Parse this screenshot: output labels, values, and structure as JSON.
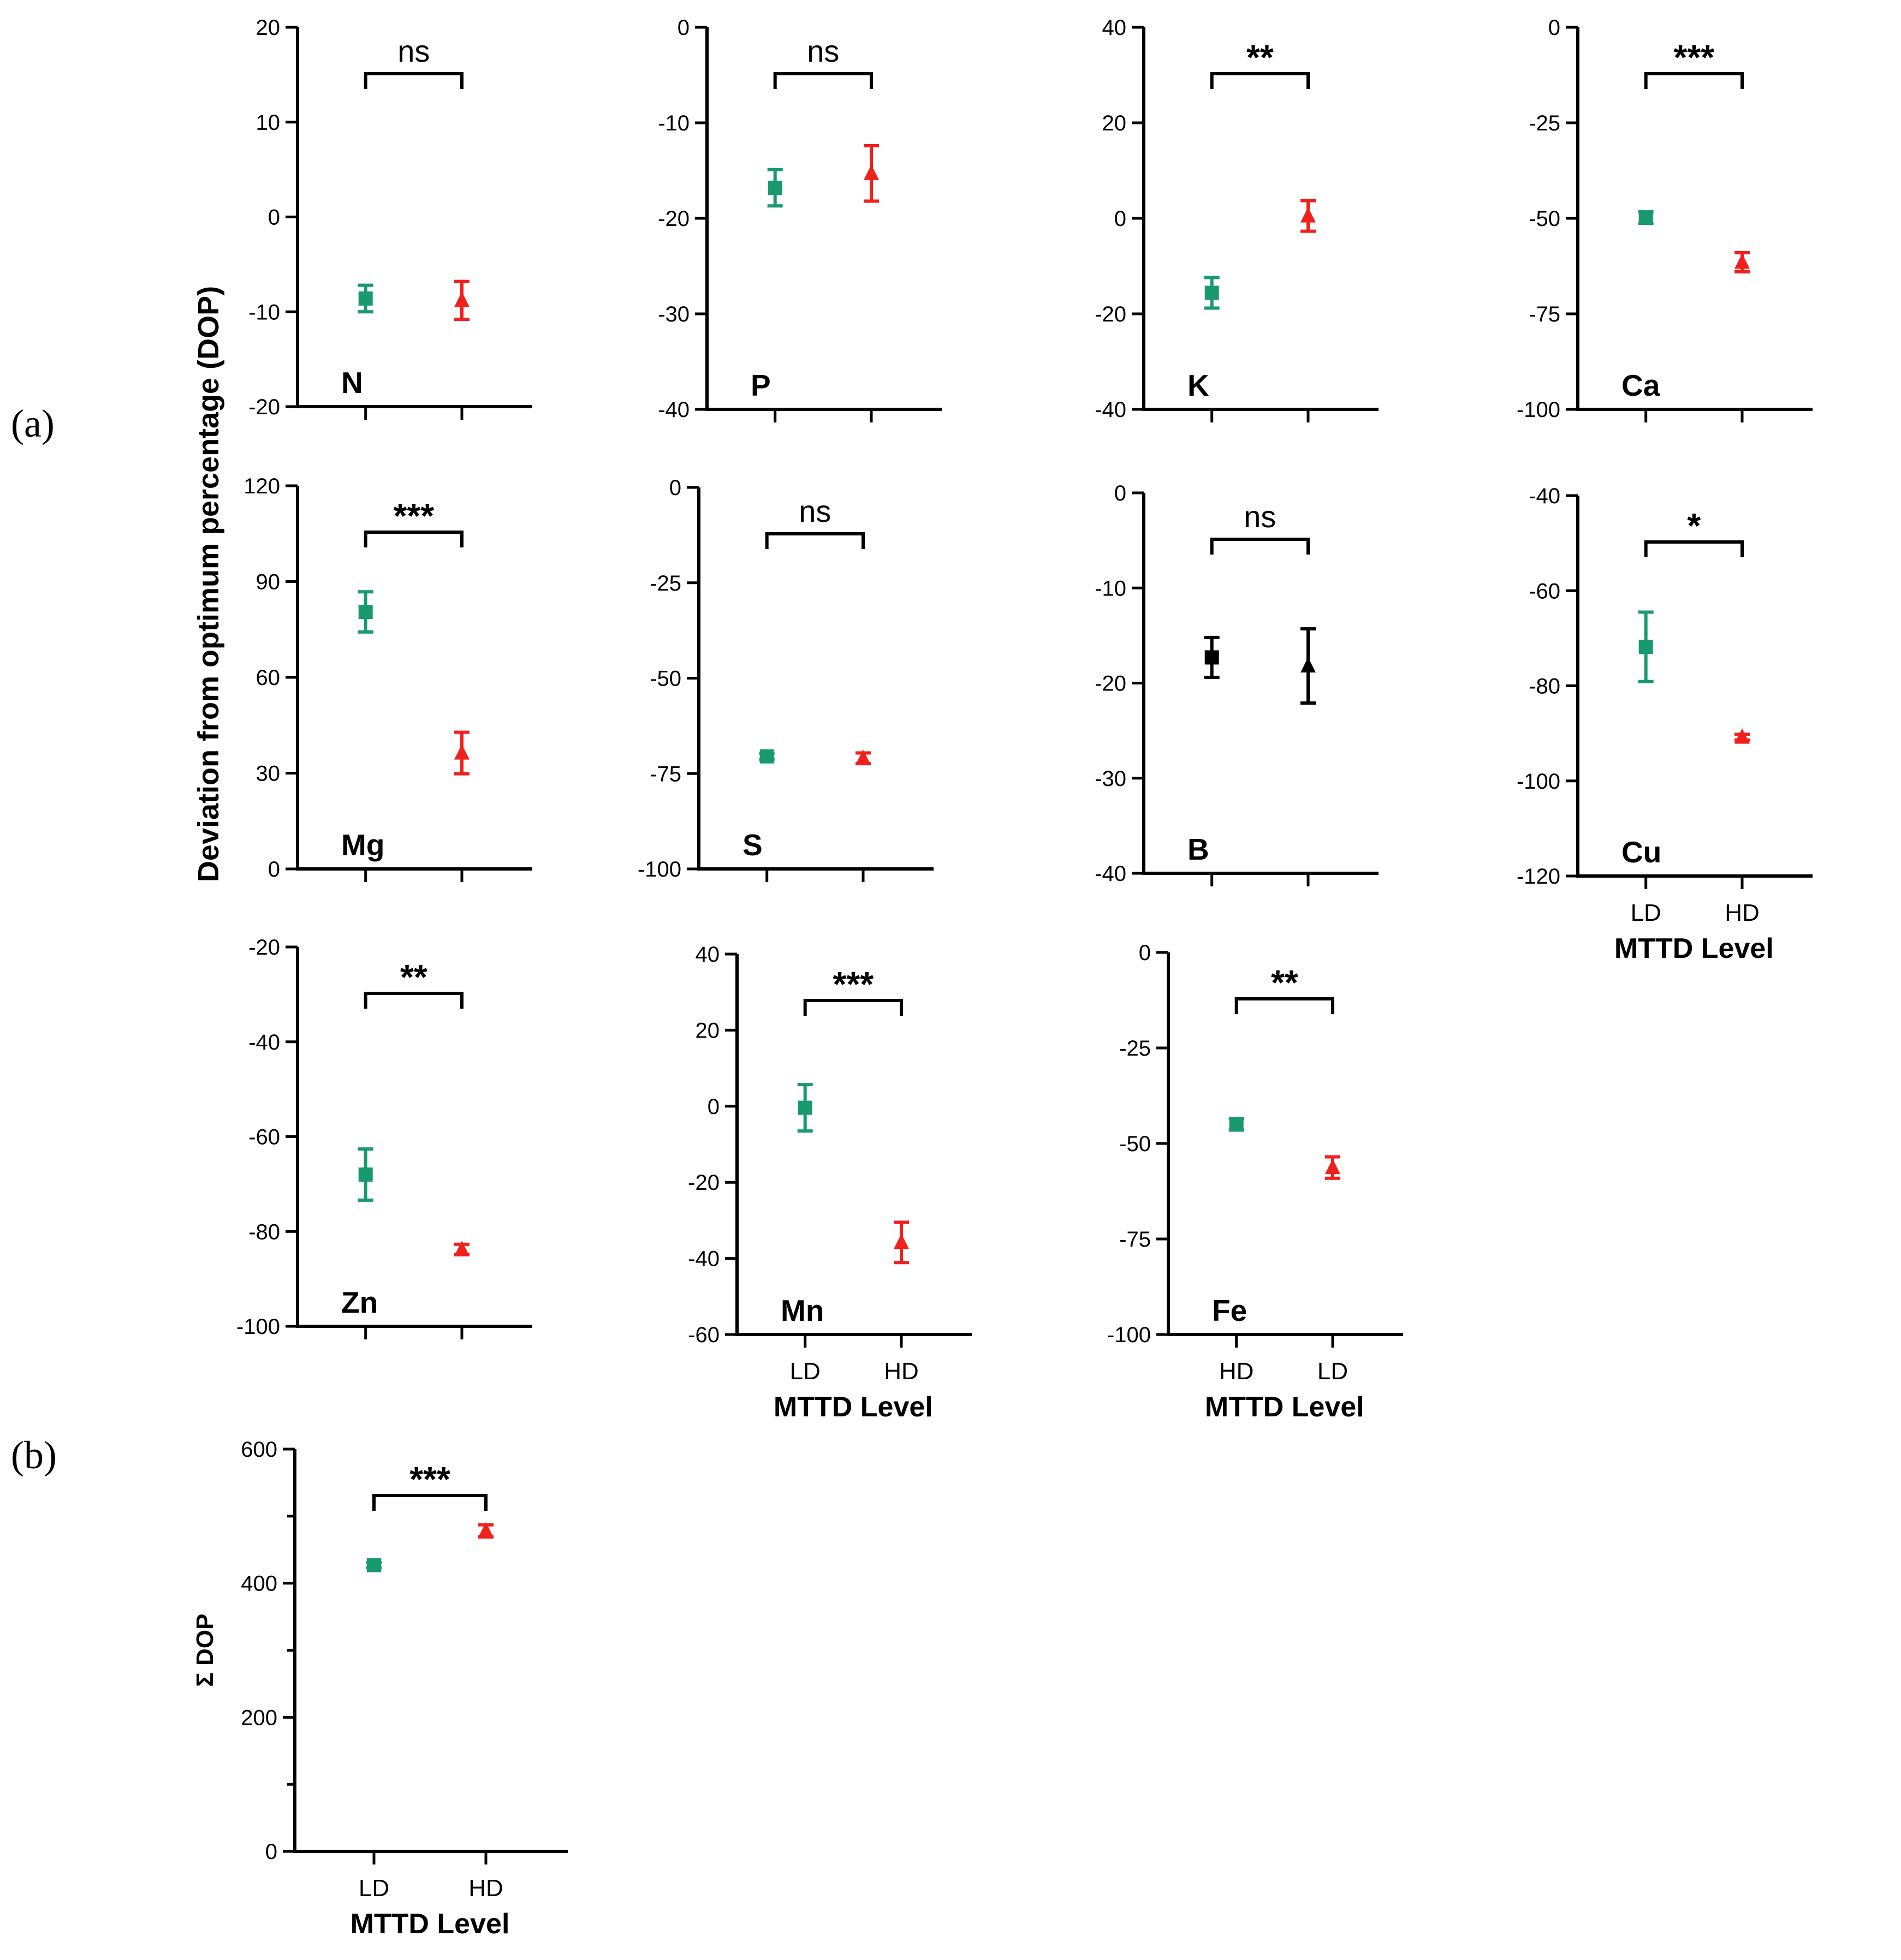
{
  "figure": {
    "panel_a_label": "(a)",
    "panel_b_label": "(b)",
    "shared_ylabel": "Deviation from optimum percentage (DOP)"
  },
  "colors": {
    "LD": "#189a6e",
    "HD": "#f0211d",
    "B": "#000000"
  },
  "chart_data": [
    {
      "type": "scatter",
      "annotation": "N",
      "significance": "ns",
      "ylim": [
        -20,
        20
      ],
      "yticks": [
        -20,
        -10,
        0,
        10,
        20
      ],
      "minor_ticks": false,
      "xlabel": "",
      "categories": [],
      "points": [
        {
          "group": "LD",
          "mean": -8.6,
          "err": 1.4,
          "marker": "square"
        },
        {
          "group": "HD",
          "mean": -8.8,
          "err": 2.0,
          "marker": "triangle"
        }
      ]
    },
    {
      "type": "scatter",
      "annotation": "P",
      "significance": "ns",
      "ylim": [
        -40,
        0
      ],
      "yticks": [
        -40,
        -30,
        -20,
        -10,
        0
      ],
      "minor_ticks": false,
      "xlabel": "",
      "categories": [],
      "points": [
        {
          "group": "LD",
          "mean": -16.8,
          "err": 1.9,
          "marker": "square"
        },
        {
          "group": "HD",
          "mean": -15.3,
          "err": 2.9,
          "marker": "triangle"
        }
      ]
    },
    {
      "type": "scatter",
      "annotation": "K",
      "significance": "**",
      "ylim": [
        -40,
        40
      ],
      "yticks": [
        -40,
        -20,
        0,
        20,
        40
      ],
      "minor_ticks": false,
      "xlabel": "",
      "categories": [],
      "points": [
        {
          "group": "LD",
          "mean": -15.6,
          "err": 3.2,
          "marker": "square"
        },
        {
          "group": "HD",
          "mean": 0.5,
          "err": 3.2,
          "marker": "triangle"
        }
      ]
    },
    {
      "type": "scatter",
      "annotation": "Ca",
      "significance": "***",
      "ylim": [
        -100,
        0
      ],
      "yticks": [
        -100,
        -75,
        -50,
        -25,
        0
      ],
      "minor_ticks": false,
      "xlabel": "",
      "categories": [],
      "points": [
        {
          "group": "LD",
          "mean": -49.8,
          "err": 1.5,
          "marker": "square"
        },
        {
          "group": "HD",
          "mean": -61.5,
          "err": 2.5,
          "marker": "triangle"
        }
      ]
    },
    {
      "type": "scatter",
      "annotation": "Mg",
      "significance": "***",
      "ylim": [
        0,
        120
      ],
      "yticks": [
        0,
        30,
        60,
        90,
        120
      ],
      "minor_ticks": false,
      "xlabel": "",
      "categories": [],
      "points": [
        {
          "group": "LD",
          "mean": 80.5,
          "err": 6.3,
          "marker": "square"
        },
        {
          "group": "HD",
          "mean": 36.3,
          "err": 6.5,
          "marker": "triangle"
        }
      ]
    },
    {
      "type": "scatter",
      "annotation": "S",
      "significance": "ns",
      "ylim": [
        -100,
        0
      ],
      "yticks": [
        -100,
        -75,
        -50,
        -25,
        0
      ],
      "minor_ticks": false,
      "xlabel": "",
      "categories": [],
      "points": [
        {
          "group": "LD",
          "mean": -70.5,
          "err": 0.8,
          "marker": "square"
        },
        {
          "group": "HD",
          "mean": -71.0,
          "err": 1.4,
          "marker": "triangle"
        }
      ]
    },
    {
      "type": "scatter",
      "annotation": "B",
      "significance": "ns",
      "ylim": [
        -40,
        0
      ],
      "yticks": [
        -40,
        -30,
        -20,
        -10,
        0
      ],
      "minor_ticks": false,
      "xlabel": "",
      "categories": [],
      "points": [
        {
          "group": "B",
          "mean": -17.3,
          "err": 2.1,
          "marker": "square"
        },
        {
          "group": "B",
          "mean": -18.2,
          "err": 3.9,
          "marker": "triangle"
        }
      ]
    },
    {
      "type": "scatter",
      "annotation": "Cu",
      "significance": "*",
      "ylim": [
        -120,
        -40
      ],
      "yticks": [
        -120,
        -100,
        -80,
        -60,
        -40
      ],
      "minor_ticks": false,
      "xlabel": "MTTD Level",
      "categories": [
        "LD",
        "HD"
      ],
      "points": [
        {
          "group": "LD",
          "mean": -71.8,
          "err": 7.3,
          "marker": "square"
        },
        {
          "group": "HD",
          "mean": -90.8,
          "err": 0.6,
          "marker": "triangle"
        }
      ]
    },
    {
      "type": "scatter",
      "annotation": "Zn",
      "significance": "**",
      "ylim": [
        -100,
        -20
      ],
      "yticks": [
        -100,
        -80,
        -60,
        -40,
        -20
      ],
      "minor_ticks": false,
      "xlabel": "",
      "categories": [],
      "points": [
        {
          "group": "LD",
          "mean": -68.0,
          "err": 5.4,
          "marker": "square"
        },
        {
          "group": "HD",
          "mean": -83.8,
          "err": 1.1,
          "marker": "triangle"
        }
      ]
    },
    {
      "type": "scatter",
      "annotation": "Mn",
      "significance": "***",
      "ylim": [
        -60,
        40
      ],
      "yticks": [
        -60,
        -40,
        -20,
        0,
        20,
        40
      ],
      "minor_ticks": false,
      "xlabel": "MTTD Level",
      "categories": [
        "LD",
        "HD"
      ],
      "points": [
        {
          "group": "LD",
          "mean": -0.4,
          "err": 6.1,
          "marker": "square"
        },
        {
          "group": "HD",
          "mean": -35.8,
          "err": 5.3,
          "marker": "triangle"
        }
      ]
    },
    {
      "type": "scatter",
      "annotation": "Fe",
      "significance": "**",
      "ylim": [
        -100,
        0
      ],
      "yticks": [
        -100,
        -75,
        -50,
        -25,
        0
      ],
      "minor_ticks": false,
      "xlabel": "MTTD Level",
      "categories": [
        "HD",
        "LD"
      ],
      "points": [
        {
          "group": "LD",
          "mean": -45.0,
          "err": 1.5,
          "marker": "square"
        },
        {
          "group": "HD",
          "mean": -56.3,
          "err": 2.8,
          "marker": "triangle"
        }
      ]
    },
    {
      "type": "scatter",
      "annotation": "",
      "significance": "***",
      "ylim": [
        0,
        600
      ],
      "yticks": [
        0,
        200,
        400,
        600
      ],
      "minor_ticks": true,
      "ylabel": "Σ DOP",
      "xlabel": "MTTD Level",
      "categories": [
        "LD",
        "HD"
      ],
      "points": [
        {
          "group": "LD",
          "mean": 427,
          "err": 4,
          "marker": "square"
        },
        {
          "group": "HD",
          "mean": 478,
          "err": 9,
          "marker": "triangle"
        }
      ]
    }
  ]
}
